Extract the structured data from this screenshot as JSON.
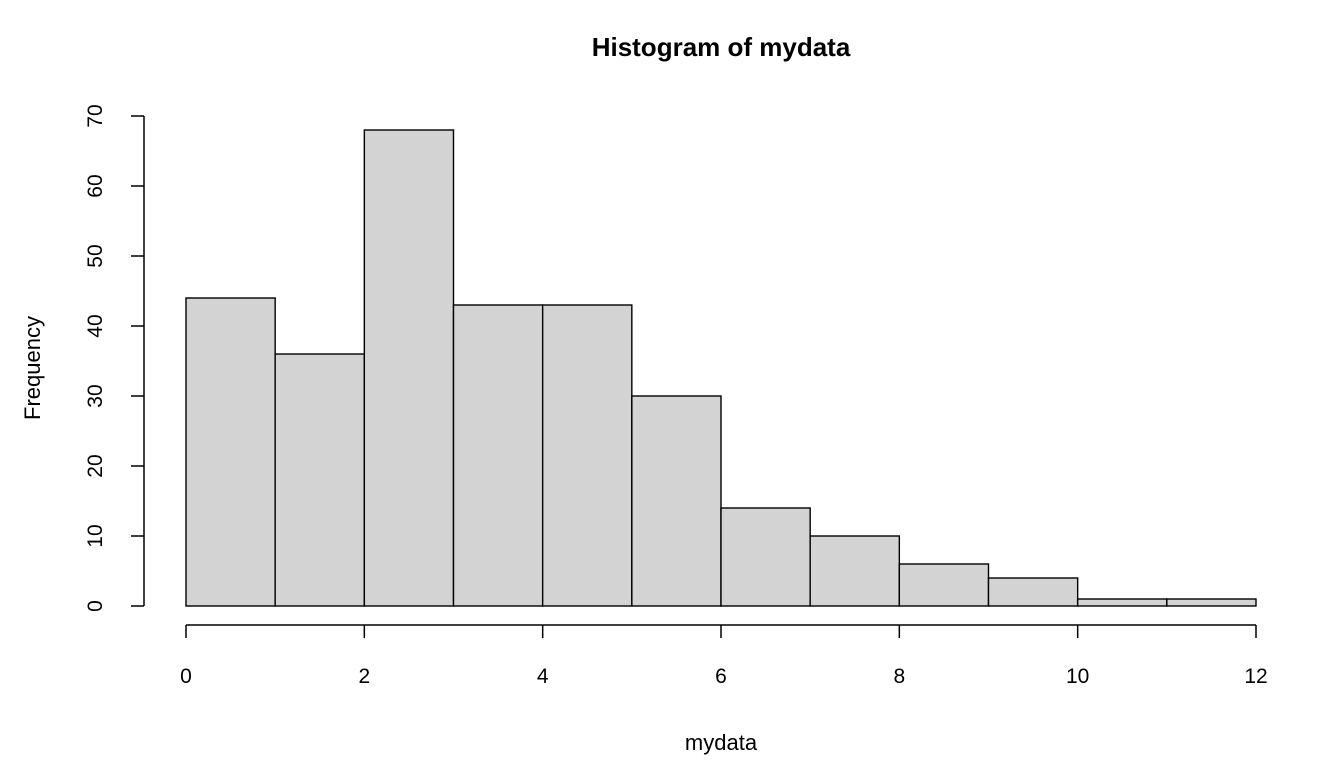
{
  "chart_data": {
    "type": "bar",
    "title": "Histogram of mydata",
    "xlabel": "mydata",
    "ylabel": "Frequency",
    "bins": [
      {
        "start": 0,
        "end": 1,
        "value": 44
      },
      {
        "start": 1,
        "end": 2,
        "value": 36
      },
      {
        "start": 2,
        "end": 3,
        "value": 68
      },
      {
        "start": 3,
        "end": 4,
        "value": 43
      },
      {
        "start": 4,
        "end": 5,
        "value": 43
      },
      {
        "start": 5,
        "end": 6,
        "value": 30
      },
      {
        "start": 6,
        "end": 7,
        "value": 14
      },
      {
        "start": 7,
        "end": 8,
        "value": 10
      },
      {
        "start": 8,
        "end": 9,
        "value": 6
      },
      {
        "start": 9,
        "end": 10,
        "value": 4
      },
      {
        "start": 10,
        "end": 11,
        "value": 1
      },
      {
        "start": 11,
        "end": 12,
        "value": 1
      }
    ],
    "xlim": [
      0,
      12
    ],
    "ylim": [
      0,
      70
    ],
    "x_ticks": [
      0,
      2,
      4,
      6,
      8,
      10,
      12
    ],
    "y_ticks": [
      0,
      10,
      20,
      30,
      40,
      50,
      60,
      70
    ],
    "bar_color": "#d3d3d3",
    "edge_color": "#000000",
    "grid": false
  }
}
